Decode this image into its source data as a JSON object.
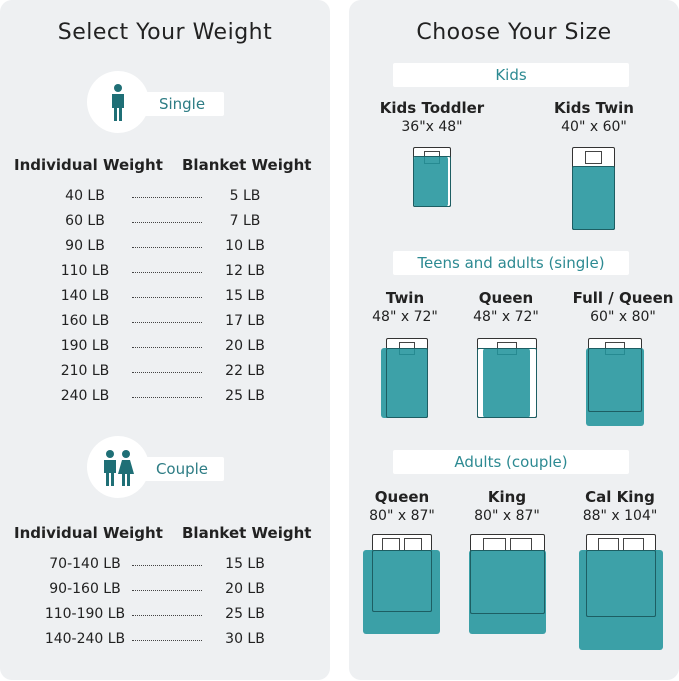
{
  "weight": {
    "title": "Select Your Weight",
    "single": {
      "label": "Single",
      "icon": "person-icon",
      "col1": "Individual Weight",
      "col2": "Blanket Weight",
      "rows": [
        [
          "40 LB",
          "5 LB"
        ],
        [
          "60 LB",
          "7 LB"
        ],
        [
          "90 LB",
          "10 LB"
        ],
        [
          "110 LB",
          "12 LB"
        ],
        [
          "140 LB",
          "15 LB"
        ],
        [
          "160 LB",
          "17 LB"
        ],
        [
          "190 LB",
          "20 LB"
        ],
        [
          "210 LB",
          "22 LB"
        ],
        [
          "240 LB",
          "25 LB"
        ]
      ]
    },
    "couple": {
      "label": "Couple",
      "icon": "couple-icon",
      "col1": "Individual Weight",
      "col2": "Blanket Weight",
      "rows": [
        [
          "70-140 LB",
          "15 LB"
        ],
        [
          "90-160 LB",
          "20 LB"
        ],
        [
          "110-190 LB",
          "25 LB"
        ],
        [
          "140-240 LB",
          "30 LB"
        ]
      ]
    }
  },
  "size": {
    "title": "Choose Your Size",
    "sections": [
      "Kids",
      "Teens and adults (single)",
      "Adults (couple)"
    ],
    "beds": [
      {
        "name": "Kids Toddler",
        "dims": "36\"x 48\""
      },
      {
        "name": "Kids Twin",
        "dims": "40\" x 60\""
      },
      {
        "name": "Twin",
        "dims": "48\" x 72\""
      },
      {
        "name": "Queen",
        "dims": "48\" x 72\""
      },
      {
        "name": "Full / Queen",
        "dims": "60\" x 80\""
      },
      {
        "name": "Queen",
        "dims": "80\" x 87\""
      },
      {
        "name": "King",
        "dims": "80\" x 87\""
      },
      {
        "name": "Cal King",
        "dims": "88\" x 104\""
      }
    ]
  },
  "colors": {
    "accent": "#22949c",
    "panel": "#eef0f2"
  }
}
